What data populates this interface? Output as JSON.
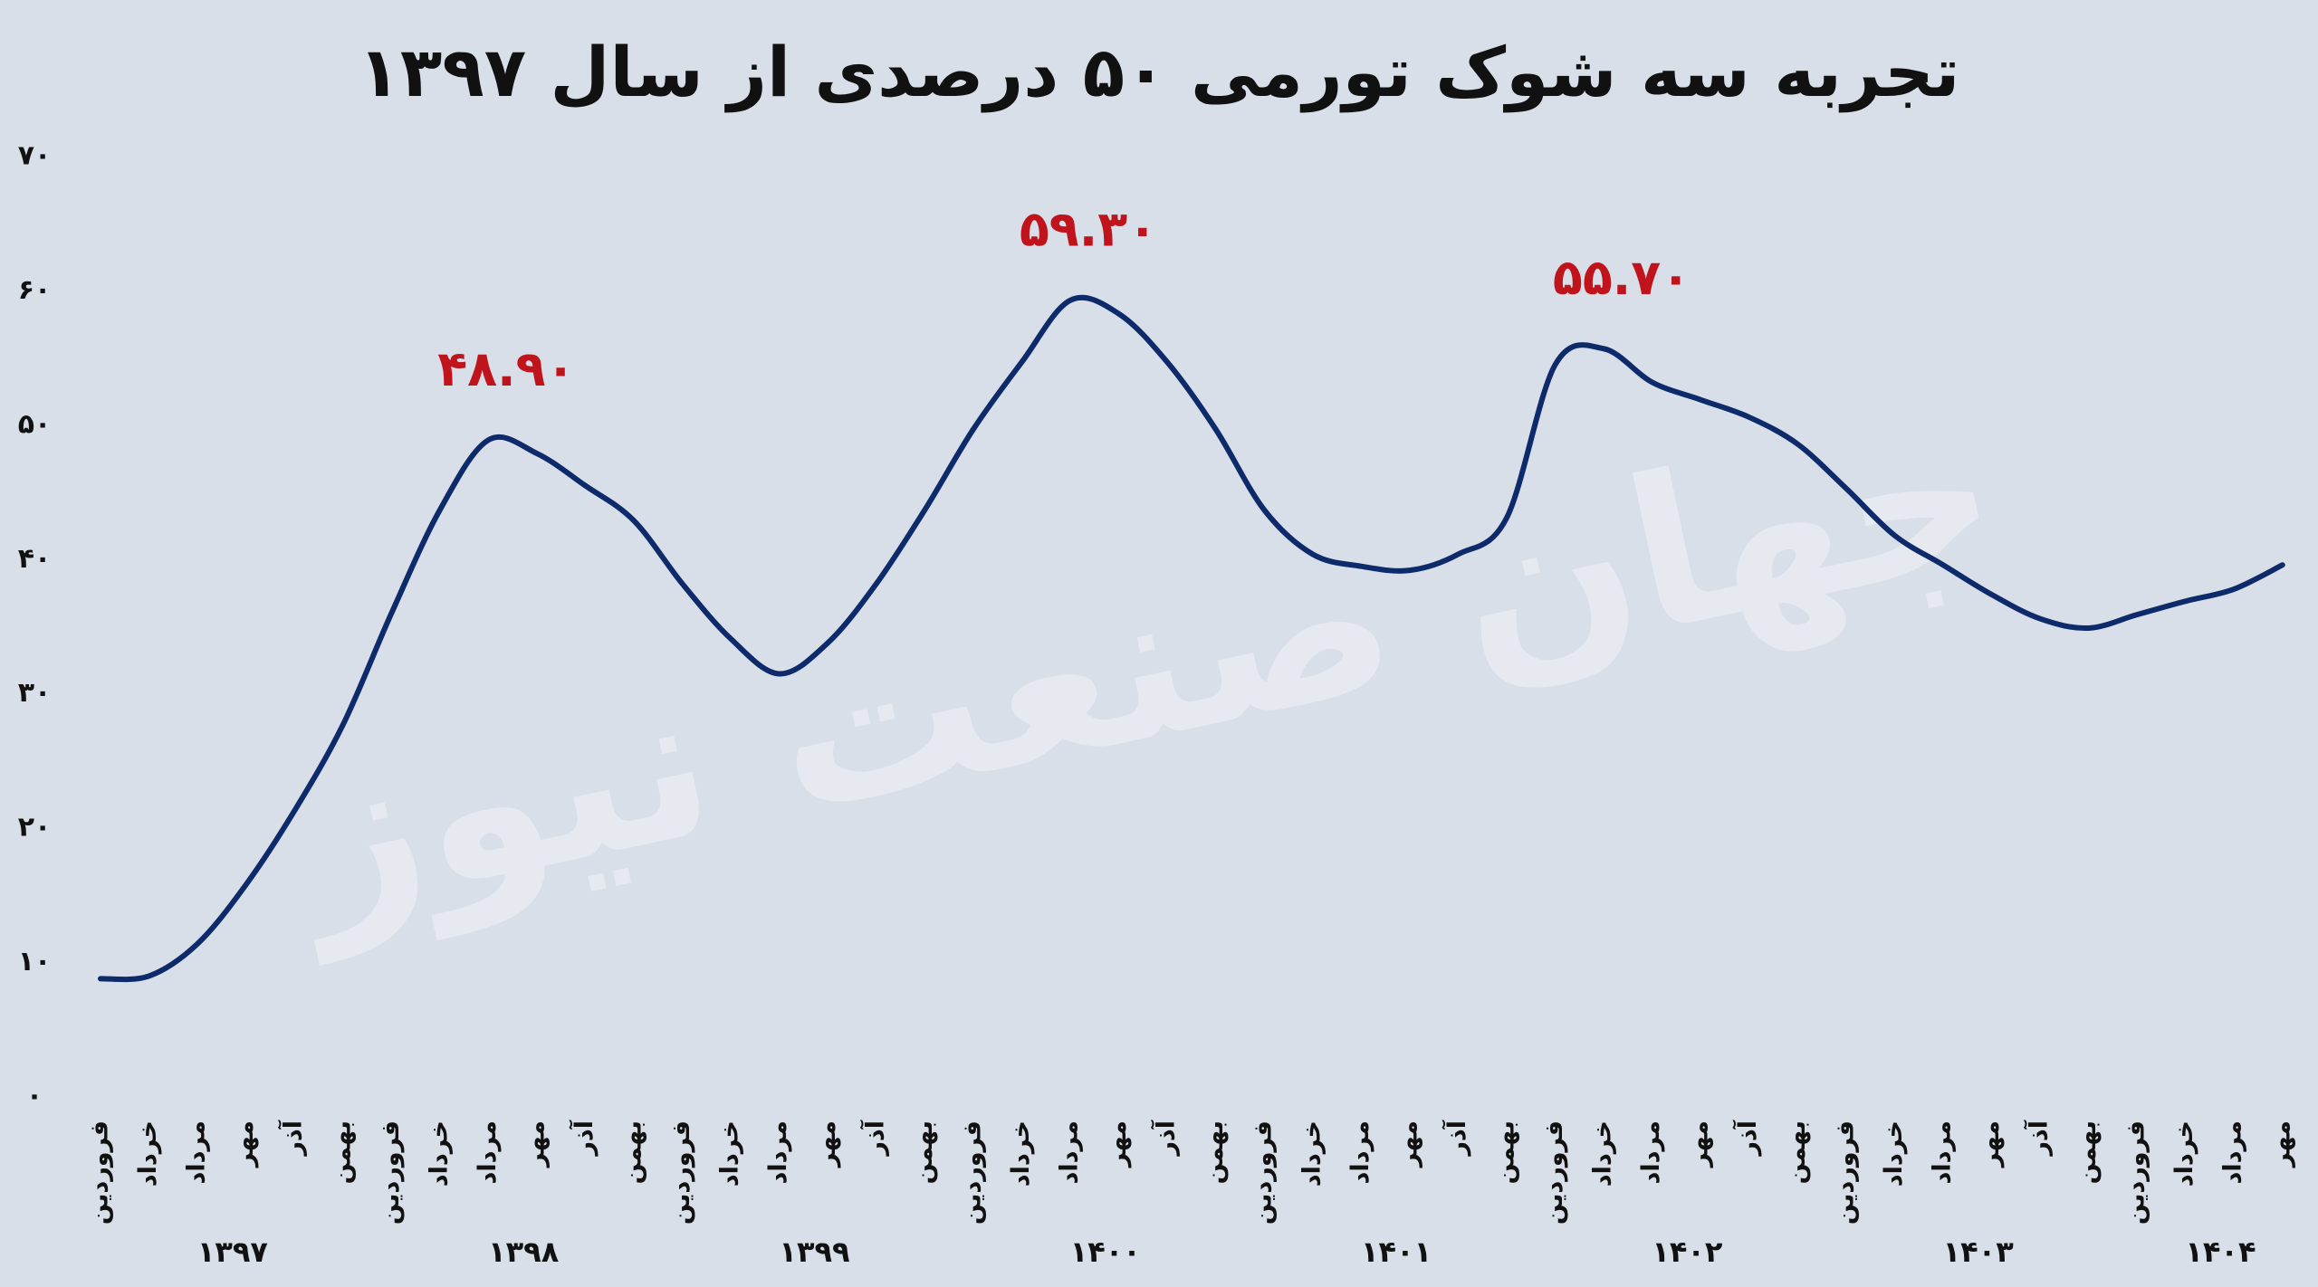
{
  "chart_data": {
    "type": "line",
    "title": "تجربه سه شوک تورمی ۵۰ درصدی از سال ۱۳۹۷",
    "watermark": "جهان صنعت نیوز",
    "categories": [
      "فروردین",
      "خرداد",
      "مرداد",
      "مهر",
      "آذر",
      "بهمن",
      "فروردین",
      "خرداد",
      "مرداد",
      "مهر",
      "آذر",
      "بهمن",
      "فروردین",
      "خرداد",
      "مرداد",
      "مهر",
      "آذر",
      "بهمن",
      "فروردین",
      "خرداد",
      "مرداد",
      "مهر",
      "آذر",
      "بهمن",
      "فروردین",
      "خرداد",
      "مرداد",
      "مهر",
      "آذر",
      "بهمن",
      "فروردین",
      "خرداد",
      "مرداد",
      "مهر",
      "آذر",
      "بهمن",
      "فروردین",
      "خرداد",
      "مرداد",
      "مهر",
      "آذر",
      "بهمن",
      "فروردین",
      "خرداد",
      "مرداد",
      "مهر"
    ],
    "year_labels": [
      "۱۳۹۷",
      "۱۳۹۸",
      "۱۳۹۹",
      "۱۴۰۰",
      "۱۴۰۱",
      "۱۴۰۲",
      "۱۴۰۳",
      "۱۴۰۴"
    ],
    "values": [
      8.8,
      9.0,
      11.4,
      15.8,
      21.3,
      27.7,
      36.0,
      43.7,
      48.9,
      47.9,
      45.5,
      42.9,
      38.2,
      34.1,
      31.5,
      33.8,
      38.2,
      43.7,
      49.7,
      54.7,
      59.3,
      58.3,
      54.7,
      49.7,
      43.7,
      40.4,
      39.5,
      39.2,
      40.4,
      43.1,
      54.5,
      55.7,
      53.2,
      51.9,
      50.6,
      48.6,
      45.3,
      41.8,
      39.6,
      37.4,
      35.6,
      34.9,
      35.9,
      36.9,
      37.8,
      39.6
    ],
    "value_labels": [
      null,
      null,
      null,
      null,
      null,
      null,
      null,
      null,
      "۴۸.۹۰",
      null,
      null,
      null,
      null,
      null,
      null,
      null,
      null,
      null,
      null,
      null,
      "۵۹.۳۰",
      null,
      null,
      null,
      null,
      null,
      null,
      null,
      null,
      null,
      null,
      "۵۵.۷۰",
      null,
      null,
      null,
      null,
      null,
      null,
      null,
      null,
      null,
      null,
      null,
      null,
      null,
      null
    ],
    "color": "#0d2a6b",
    "label_color": "#c0141c",
    "ylim": [
      0,
      70
    ],
    "yticks": [
      {
        "value": 0,
        "label": "۰"
      },
      {
        "value": 10,
        "label": "۱۰"
      },
      {
        "value": 20,
        "label": "۲۰"
      },
      {
        "value": 30,
        "label": "۳۰"
      },
      {
        "value": 40,
        "label": "۴۰"
      },
      {
        "value": 50,
        "label": "۵۰"
      },
      {
        "value": 60,
        "label": "۶۰"
      },
      {
        "value": 70,
        "label": "۷۰"
      }
    ],
    "grid": false
  }
}
